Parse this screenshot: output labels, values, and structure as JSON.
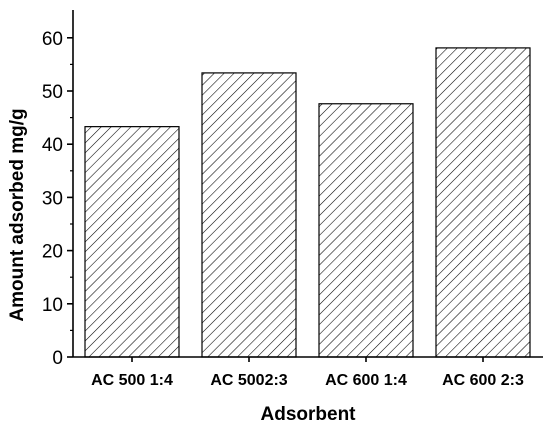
{
  "chart_data": {
    "type": "bar",
    "title": "",
    "xlabel": "Adsorbent",
    "ylabel": "Amount adsorbed mg/g",
    "categories": [
      "AC 500 1:4",
      "AC 5002:3",
      "AC 600 1:4",
      "AC 600 2:3"
    ],
    "values": [
      43.3,
      53.4,
      47.6,
      58.1
    ],
    "ylim": [
      0,
      65
    ],
    "yticks": [
      0,
      10,
      20,
      30,
      40,
      50,
      60
    ],
    "bar_fill": "diagonal-hatch",
    "bar_color": "#000000",
    "grid": false,
    "legend": "none"
  }
}
